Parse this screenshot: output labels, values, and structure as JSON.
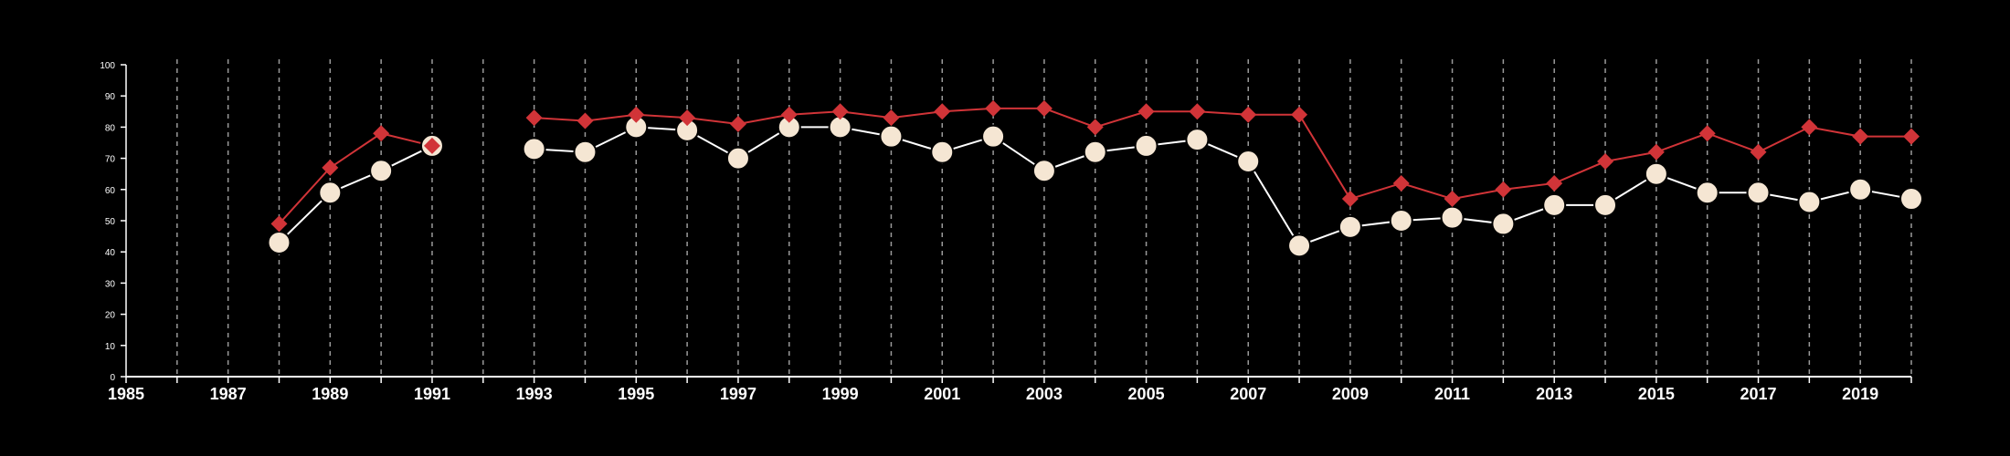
{
  "chart_data": {
    "type": "line",
    "title": "",
    "xlabel": "",
    "ylabel": "",
    "xlim": [
      1985,
      2020
    ],
    "ylim": [
      0,
      100
    ],
    "y_ticks": [
      0,
      10,
      20,
      30,
      40,
      50,
      60,
      70,
      80,
      90,
      100
    ],
    "x_tick_labels": [
      "1985",
      "1987",
      "1989",
      "1991",
      "1993",
      "1995",
      "1997",
      "1999",
      "2001",
      "2003",
      "2005",
      "2007",
      "2009",
      "2011",
      "2013",
      "2015",
      "2017",
      "2019"
    ],
    "grid": "vertical dashed lines at every year",
    "legend": "none",
    "series": [
      {
        "marker": "diamond",
        "color": "#d13438",
        "points": [
          [
            1988,
            49
          ],
          [
            1989,
            67
          ],
          [
            1990,
            78
          ],
          [
            1991,
            74
          ],
          [
            1993,
            83
          ],
          [
            1994,
            82
          ],
          [
            1995,
            84
          ],
          [
            1996,
            83
          ],
          [
            1997,
            81
          ],
          [
            1998,
            84
          ],
          [
            1999,
            85
          ],
          [
            2000,
            83
          ],
          [
            2001,
            85
          ],
          [
            2002,
            86
          ],
          [
            2003,
            86
          ],
          [
            2004,
            80
          ],
          [
            2005,
            85
          ],
          [
            2006,
            85
          ],
          [
            2007,
            84
          ],
          [
            2008,
            84
          ],
          [
            2009,
            57
          ],
          [
            2010,
            62
          ],
          [
            2011,
            57
          ],
          [
            2012,
            60
          ],
          [
            2013,
            62
          ],
          [
            2014,
            69
          ],
          [
            2015,
            72
          ],
          [
            2016,
            78
          ],
          [
            2017,
            72
          ],
          [
            2018,
            80
          ],
          [
            2019,
            77
          ],
          [
            2020,
            77
          ]
        ]
      },
      {
        "marker": "circle",
        "color": "#f5e6d3",
        "line_color": "#ffffff",
        "points": [
          [
            1988,
            43
          ],
          [
            1989,
            59
          ],
          [
            1990,
            66
          ],
          [
            1991,
            74
          ],
          [
            1993,
            73
          ],
          [
            1994,
            72
          ],
          [
            1995,
            80
          ],
          [
            1996,
            79
          ],
          [
            1997,
            70
          ],
          [
            1998,
            80
          ],
          [
            1999,
            80
          ],
          [
            2000,
            77
          ],
          [
            2001,
            72
          ],
          [
            2002,
            77
          ],
          [
            2003,
            66
          ],
          [
            2004,
            72
          ],
          [
            2005,
            74
          ],
          [
            2006,
            76
          ],
          [
            2007,
            69
          ],
          [
            2008,
            42
          ],
          [
            2009,
            48
          ],
          [
            2010,
            50
          ],
          [
            2011,
            51
          ],
          [
            2012,
            49
          ],
          [
            2013,
            55
          ],
          [
            2014,
            55
          ],
          [
            2015,
            65
          ],
          [
            2016,
            59
          ],
          [
            2017,
            59
          ],
          [
            2018,
            56
          ],
          [
            2019,
            60
          ],
          [
            2020,
            57
          ]
        ]
      }
    ]
  }
}
